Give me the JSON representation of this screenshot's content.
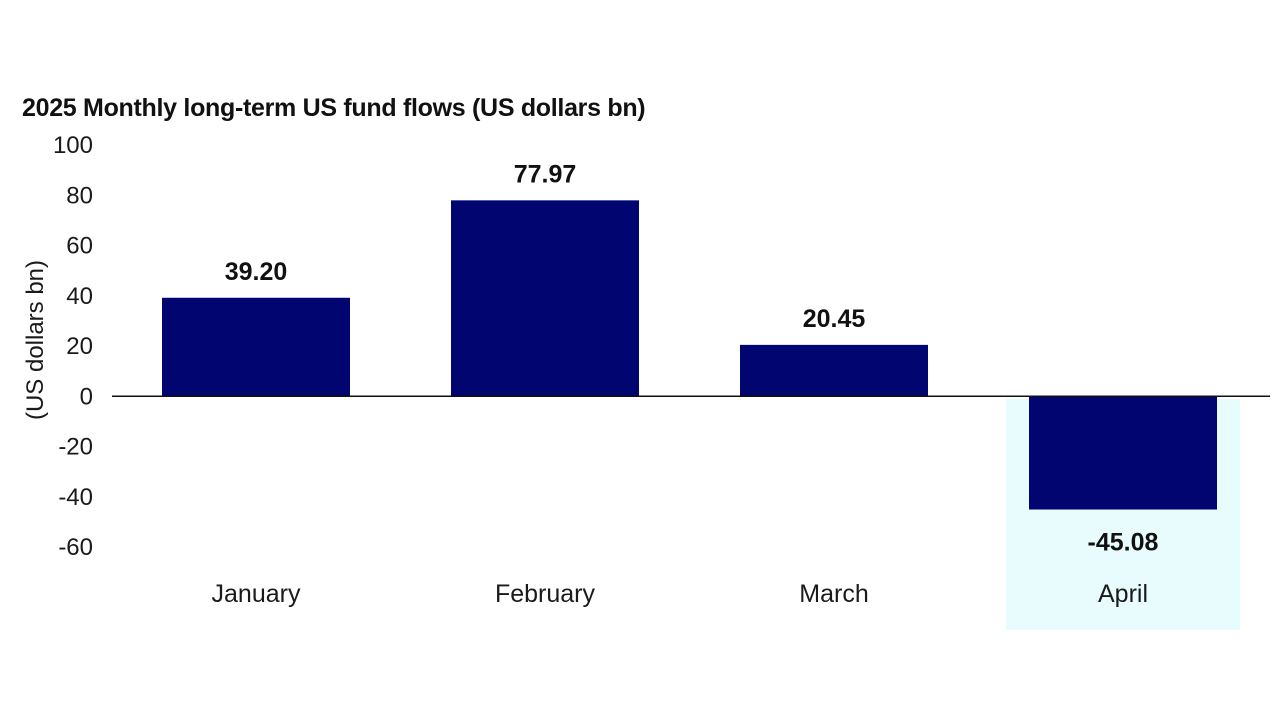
{
  "title": "2025 Monthly long-term US fund flows (US dollars bn)",
  "colors": {
    "bar": "#000570",
    "highlight": "#e8fbfd",
    "axis": "#111111"
  },
  "chart_data": {
    "type": "bar",
    "title": "2025 Monthly long-term US fund flows (US dollars bn)",
    "xlabel": "",
    "ylabel": "(US dollars bn)",
    "categories": [
      "January",
      "February",
      "March",
      "April"
    ],
    "values": [
      39.2,
      77.97,
      20.45,
      -45.08
    ],
    "data_labels": [
      "39.20",
      "77.97",
      "20.45",
      "-45.08"
    ],
    "highlighted_category": "April",
    "ylim": [
      -60,
      100
    ],
    "yticks": [
      100,
      80,
      60,
      40,
      20,
      0,
      -20,
      -40,
      -60
    ],
    "grid": false,
    "legend": "none"
  }
}
